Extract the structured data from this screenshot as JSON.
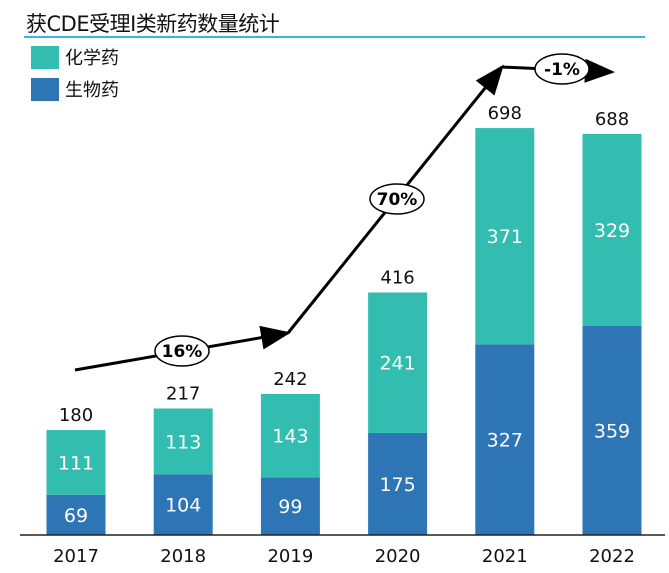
{
  "chart_data": {
    "type": "bar",
    "stacked": true,
    "title": "获CDE受理I类新药数量统计",
    "categories": [
      "2017",
      "2018",
      "2019",
      "2020",
      "2021",
      "2022"
    ],
    "series": [
      {
        "name": "生物药",
        "values": [
          69,
          104,
          99,
          175,
          327,
          359
        ],
        "color": "#2E75B6"
      },
      {
        "name": "化学药",
        "values": [
          111,
          113,
          143,
          241,
          371,
          329
        ],
        "color": "#33BDB0"
      }
    ],
    "totals": [
      180,
      217,
      242,
      416,
      698,
      688
    ],
    "legend": "top-left",
    "grid": false,
    "annotations": [
      {
        "label": "16%"
      },
      {
        "label": "70%"
      },
      {
        "label": "-1%"
      }
    ]
  }
}
